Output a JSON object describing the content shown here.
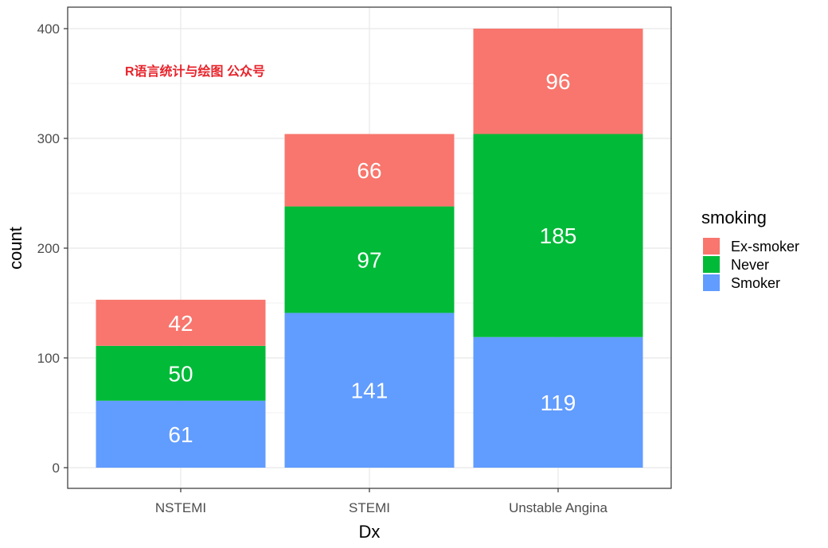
{
  "chart_data": {
    "type": "bar",
    "stacked": true,
    "categories": [
      "NSTEMI",
      "STEMI",
      "Unstable Angina"
    ],
    "series": [
      {
        "name": "Smoker",
        "values": [
          61,
          141,
          119
        ],
        "color": "#619CFF"
      },
      {
        "name": "Never",
        "values": [
          50,
          97,
          185
        ],
        "color": "#00BA38"
      },
      {
        "name": "Ex-smoker",
        "values": [
          42,
          66,
          96
        ],
        "color": "#F8766D"
      }
    ],
    "xlabel": "Dx",
    "ylabel": "count",
    "ylim": [
      0,
      400
    ],
    "yticks": [
      0,
      100,
      200,
      300,
      400
    ],
    "grid": true,
    "legend": {
      "title": "smoking",
      "placement": "right",
      "items": [
        "Ex-smoker",
        "Never",
        "Smoker"
      ]
    },
    "annotation": {
      "text": "R语言统计与绘图 公众号",
      "color": "#E8232B"
    }
  }
}
